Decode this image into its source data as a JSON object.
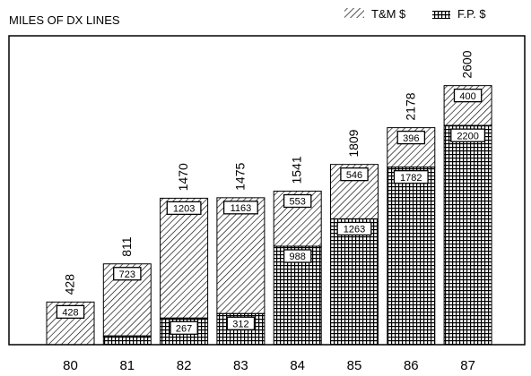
{
  "chart_data": {
    "type": "bar",
    "stacked": true,
    "title": "MILES OF DX LINES",
    "legend": {
      "position": "top-right",
      "entries": [
        {
          "name": "T&M $",
          "pattern": "diagonal-hatch"
        },
        {
          "name": "F.P. $",
          "pattern": "cross-hatch"
        }
      ]
    },
    "categories": [
      "80",
      "81",
      "82",
      "83",
      "84",
      "85",
      "86",
      "87"
    ],
    "series": [
      {
        "name": "F.P. $",
        "values": [
          0,
          88,
          267,
          312,
          988,
          1263,
          1782,
          2200
        ],
        "value_labels": [
          "",
          "",
          "267",
          "312",
          "988",
          "1263",
          "1782",
          "2200"
        ]
      },
      {
        "name": "T&M $",
        "values": [
          428,
          723,
          1203,
          1163,
          553,
          546,
          396,
          400
        ],
        "value_labels": [
          "428",
          "723",
          "1203",
          "1163",
          "553",
          "546",
          "396",
          "400"
        ]
      }
    ],
    "totals": [
      428,
      811,
      1470,
      1475,
      1541,
      1809,
      2178,
      2600
    ],
    "ylim": [
      0,
      3100
    ],
    "grid": false,
    "colors": {
      "ink": "#000000",
      "background": "#ffffff"
    }
  }
}
